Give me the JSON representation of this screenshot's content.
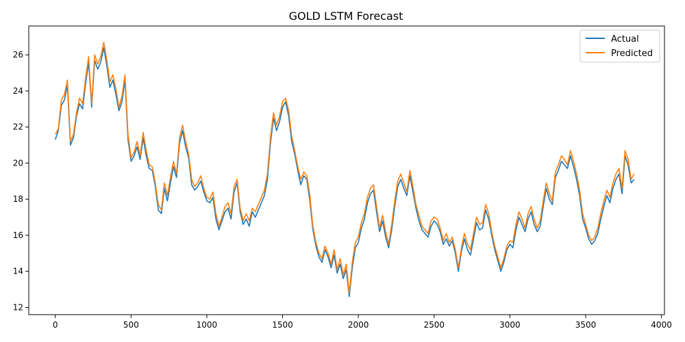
{
  "chart_data": {
    "type": "line",
    "title": "GOLD LSTM Forecast",
    "xlabel": "",
    "ylabel": "",
    "xlim": [
      -175,
      4020
    ],
    "ylim": [
      11.6,
      27.6
    ],
    "x_ticks": [
      0,
      500,
      1000,
      1500,
      2000,
      2500,
      3000,
      3500,
      4000
    ],
    "x_tick_labels": [
      "0",
      "500",
      "1000",
      "1500",
      "2000",
      "2500",
      "3000",
      "3500",
      "4000"
    ],
    "y_ticks": [
      12,
      14,
      16,
      18,
      20,
      22,
      24,
      26
    ],
    "y_tick_labels": [
      "12",
      "14",
      "16",
      "18",
      "20",
      "22",
      "24",
      "26"
    ],
    "grid": false,
    "legend_position": "top-right",
    "colors": {
      "actual": "#1f77b4",
      "predicted": "#ff7f0e"
    },
    "series": [
      {
        "name": "Actual",
        "x": [
          0,
          20,
          40,
          60,
          80,
          100,
          120,
          140,
          160,
          180,
          200,
          220,
          240,
          260,
          280,
          300,
          320,
          340,
          360,
          380,
          400,
          420,
          440,
          460,
          480,
          500,
          520,
          540,
          560,
          580,
          600,
          620,
          640,
          660,
          680,
          700,
          720,
          740,
          760,
          780,
          800,
          820,
          840,
          860,
          880,
          900,
          920,
          940,
          960,
          980,
          1000,
          1020,
          1040,
          1060,
          1080,
          1100,
          1120,
          1140,
          1160,
          1180,
          1200,
          1220,
          1240,
          1260,
          1280,
          1300,
          1320,
          1340,
          1360,
          1380,
          1400,
          1420,
          1440,
          1460,
          1480,
          1500,
          1520,
          1540,
          1560,
          1580,
          1600,
          1620,
          1640,
          1660,
          1680,
          1700,
          1720,
          1740,
          1760,
          1780,
          1800,
          1820,
          1840,
          1860,
          1880,
          1900,
          1920,
          1940,
          1960,
          1980,
          2000,
          2020,
          2040,
          2060,
          2080,
          2100,
          2120,
          2140,
          2160,
          2180,
          2200,
          2220,
          2240,
          2260,
          2280,
          2300,
          2320,
          2340,
          2360,
          2380,
          2400,
          2420,
          2440,
          2460,
          2480,
          2500,
          2520,
          2540,
          2560,
          2580,
          2600,
          2620,
          2640,
          2660,
          2680,
          2700,
          2720,
          2740,
          2760,
          2780,
          2800,
          2820,
          2840,
          2860,
          2880,
          2900,
          2920,
          2940,
          2960,
          2980,
          3000,
          3020,
          3040,
          3060,
          3080,
          3100,
          3120,
          3140,
          3160,
          3180,
          3200,
          3220,
          3240,
          3260,
          3280,
          3300,
          3320,
          3340,
          3360,
          3380,
          3400,
          3420,
          3440,
          3460,
          3480,
          3500,
          3520,
          3540,
          3560,
          3580,
          3600,
          3620,
          3640,
          3660,
          3680,
          3700,
          3720,
          3740,
          3760,
          3780,
          3800,
          3820
        ],
        "values": [
          21.3,
          21.8,
          23.2,
          23.5,
          24.3,
          21.0,
          21.4,
          22.6,
          23.3,
          23.0,
          24.4,
          25.6,
          23.1,
          25.7,
          25.2,
          25.6,
          26.4,
          25.4,
          24.2,
          24.6,
          23.8,
          22.9,
          23.4,
          24.6,
          21.3,
          20.1,
          20.4,
          20.9,
          20.2,
          21.4,
          20.4,
          19.7,
          19.6,
          18.7,
          17.4,
          17.2,
          18.6,
          17.9,
          18.9,
          19.8,
          19.2,
          21.1,
          21.8,
          20.9,
          20.3,
          18.8,
          18.5,
          18.7,
          19.0,
          18.4,
          17.9,
          17.8,
          18.1,
          16.9,
          16.3,
          16.8,
          17.3,
          17.5,
          16.9,
          18.4,
          18.9,
          17.3,
          16.6,
          16.9,
          16.5,
          17.3,
          17.0,
          17.4,
          17.8,
          18.2,
          19.1,
          21.1,
          22.5,
          21.8,
          22.3,
          23.1,
          23.4,
          22.6,
          21.2,
          20.5,
          19.6,
          18.8,
          19.3,
          19.1,
          17.9,
          16.3,
          15.4,
          14.8,
          14.5,
          15.2,
          14.8,
          14.2,
          14.9,
          13.9,
          14.4,
          13.6,
          14.1,
          12.6,
          14.2,
          15.3,
          15.6,
          16.4,
          16.9,
          17.8,
          18.3,
          18.5,
          17.3,
          16.2,
          16.8,
          15.9,
          15.3,
          16.3,
          17.6,
          18.7,
          19.1,
          18.6,
          18.2,
          19.3,
          18.4,
          17.5,
          16.8,
          16.3,
          16.1,
          15.9,
          16.5,
          16.8,
          16.6,
          16.2,
          15.5,
          15.8,
          15.4,
          15.7,
          15.0,
          14.0,
          15.1,
          15.8,
          15.2,
          14.9,
          15.8,
          16.7,
          16.3,
          16.4,
          17.4,
          16.9,
          16.0,
          15.2,
          14.6,
          14.0,
          14.5,
          15.2,
          15.5,
          15.3,
          16.3,
          17.0,
          16.6,
          16.2,
          16.9,
          17.3,
          16.6,
          16.2,
          16.5,
          17.6,
          18.6,
          18.0,
          17.7,
          19.2,
          19.6,
          20.1,
          19.9,
          19.7,
          20.4,
          19.8,
          19.1,
          18.2,
          16.9,
          16.4,
          15.8,
          15.5,
          15.7,
          16.1,
          16.9,
          17.6,
          18.2,
          17.8,
          18.6,
          19.1,
          19.4,
          18.3,
          20.4,
          19.9,
          18.9,
          19.1
        ]
      },
      {
        "name": "Predicted",
        "x": [
          0,
          20,
          40,
          60,
          80,
          100,
          120,
          140,
          160,
          180,
          200,
          220,
          240,
          260,
          280,
          300,
          320,
          340,
          360,
          380,
          400,
          420,
          440,
          460,
          480,
          500,
          520,
          540,
          560,
          580,
          600,
          620,
          640,
          660,
          680,
          700,
          720,
          740,
          760,
          780,
          800,
          820,
          840,
          860,
          880,
          900,
          920,
          940,
          960,
          980,
          1000,
          1020,
          1040,
          1060,
          1080,
          1100,
          1120,
          1140,
          1160,
          1180,
          1200,
          1220,
          1240,
          1260,
          1280,
          1300,
          1320,
          1340,
          1360,
          1380,
          1400,
          1420,
          1440,
          1460,
          1480,
          1500,
          1520,
          1540,
          1560,
          1580,
          1600,
          1620,
          1640,
          1660,
          1680,
          1700,
          1720,
          1740,
          1760,
          1780,
          1800,
          1820,
          1840,
          1860,
          1880,
          1900,
          1920,
          1940,
          1960,
          1980,
          2000,
          2020,
          2040,
          2060,
          2080,
          2100,
          2120,
          2140,
          2160,
          2180,
          2200,
          2220,
          2240,
          2260,
          2280,
          2300,
          2320,
          2340,
          2360,
          2380,
          2400,
          2420,
          2440,
          2460,
          2480,
          2500,
          2520,
          2540,
          2560,
          2580,
          2600,
          2620,
          2640,
          2660,
          2680,
          2700,
          2720,
          2740,
          2760,
          2780,
          2800,
          2820,
          2840,
          2860,
          2880,
          2900,
          2920,
          2940,
          2960,
          2980,
          3000,
          3020,
          3040,
          3060,
          3080,
          3100,
          3120,
          3140,
          3160,
          3180,
          3200,
          3220,
          3240,
          3260,
          3280,
          3300,
          3320,
          3340,
          3360,
          3380,
          3400,
          3420,
          3440,
          3460,
          3480,
          3500,
          3520,
          3540,
          3560,
          3580,
          3600,
          3620,
          3640,
          3660,
          3680,
          3700,
          3720,
          3740,
          3760,
          3780,
          3800,
          3820
        ],
        "values": [
          21.6,
          21.9,
          23.5,
          23.8,
          24.6,
          21.2,
          21.6,
          22.8,
          23.6,
          23.3,
          24.7,
          25.9,
          23.3,
          26.0,
          25.5,
          25.9,
          26.7,
          25.7,
          24.5,
          24.9,
          24.1,
          23.1,
          23.7,
          24.9,
          21.6,
          20.3,
          20.6,
          21.2,
          20.4,
          21.7,
          20.7,
          19.9,
          19.8,
          18.9,
          17.7,
          17.4,
          18.9,
          18.2,
          19.2,
          20.1,
          19.4,
          21.4,
          22.1,
          21.2,
          20.5,
          19.1,
          18.7,
          18.9,
          19.3,
          18.6,
          18.1,
          18.0,
          18.4,
          17.2,
          16.5,
          17.0,
          17.6,
          17.8,
          17.2,
          18.7,
          19.1,
          17.5,
          16.8,
          17.2,
          16.8,
          17.5,
          17.3,
          17.7,
          18.1,
          18.5,
          19.4,
          21.4,
          22.8,
          22.1,
          22.6,
          23.4,
          23.6,
          22.9,
          21.5,
          20.7,
          19.8,
          19.1,
          19.5,
          19.3,
          18.2,
          16.5,
          15.6,
          15.0,
          14.7,
          15.4,
          15.0,
          14.4,
          15.2,
          14.1,
          14.7,
          13.8,
          14.4,
          12.8,
          14.5,
          15.6,
          15.9,
          16.7,
          17.2,
          18.1,
          18.6,
          18.8,
          17.6,
          16.4,
          17.1,
          16.2,
          15.5,
          16.6,
          17.9,
          19.0,
          19.4,
          18.9,
          18.4,
          19.6,
          18.7,
          17.7,
          17.1,
          16.5,
          16.3,
          16.1,
          16.8,
          17.0,
          16.9,
          16.4,
          15.7,
          16.1,
          15.6,
          15.9,
          15.2,
          14.2,
          15.3,
          16.1,
          15.5,
          15.2,
          16.1,
          17.0,
          16.6,
          16.7,
          17.7,
          17.2,
          16.2,
          15.4,
          14.8,
          14.2,
          14.7,
          15.4,
          15.7,
          15.6,
          16.6,
          17.3,
          16.9,
          16.4,
          17.2,
          17.6,
          16.9,
          16.4,
          16.8,
          17.9,
          18.9,
          18.3,
          17.9,
          19.5,
          19.9,
          20.4,
          20.2,
          19.9,
          20.7,
          20.1,
          19.4,
          18.5,
          17.2,
          16.6,
          16.0,
          15.7,
          15.9,
          16.4,
          17.2,
          17.9,
          18.5,
          18.1,
          18.9,
          19.4,
          19.7,
          18.6,
          20.7,
          20.2,
          19.1,
          19.4
        ]
      }
    ]
  }
}
